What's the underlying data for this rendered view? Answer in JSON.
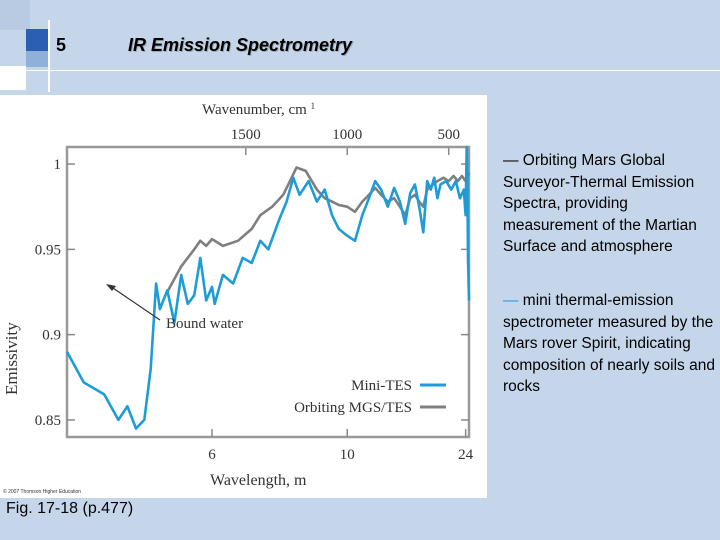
{
  "slide": {
    "number": "5",
    "title": "IR Emission Spectrometry",
    "caption": "Fig. 17-18 (p.477)",
    "copyright": "© 2007 Thomson Higher Education"
  },
  "descriptions": [
    {
      "dash": "—",
      "text": " Orbiting Mars Global Surveyor-Thermal Emission Spectra, providing measurement of the Martian Surface and atmosphere",
      "dash_color": "#000000"
    },
    {
      "dash": "—",
      "text": " mini thermal-emission spectrometer measured by the Mars rover Spirit, indicating composition of nearly soils and rocks",
      "dash_color": "#1e9cd7"
    }
  ],
  "chart_data": {
    "type": "line",
    "xlabel": "Wavelength, m",
    "x2label": "Wavenumber, cm",
    "x2label_sup": "1",
    "ylabel": "Emissivity",
    "xlim": [
      4.2,
      25
    ],
    "ylim": [
      0.84,
      1.01
    ],
    "x_scale": "reciprocal",
    "x_ticks": [
      6,
      10,
      24
    ],
    "x2_ticks": [
      1500,
      1000,
      500
    ],
    "y_ticks": [
      0.85,
      0.9,
      0.95,
      1
    ],
    "y_tick_labels": [
      "0.85",
      "0.9",
      "0.95",
      "1"
    ],
    "grid": false,
    "legend_position": "bottom-right",
    "annotation": {
      "text": "Bound water",
      "x": 5.3,
      "y": 0.927
    },
    "series": [
      {
        "name": "Mini-TES",
        "color": "#1e9cd7",
        "points": [
          [
            4.2,
            0.89
          ],
          [
            4.35,
            0.872
          ],
          [
            4.55,
            0.865
          ],
          [
            4.7,
            0.85
          ],
          [
            4.8,
            0.858
          ],
          [
            4.9,
            0.845
          ],
          [
            5.0,
            0.85
          ],
          [
            5.08,
            0.88
          ],
          [
            5.15,
            0.93
          ],
          [
            5.2,
            0.915
          ],
          [
            5.3,
            0.926
          ],
          [
            5.4,
            0.907
          ],
          [
            5.5,
            0.935
          ],
          [
            5.6,
            0.918
          ],
          [
            5.7,
            0.923
          ],
          [
            5.8,
            0.945
          ],
          [
            5.9,
            0.92
          ],
          [
            6.0,
            0.928
          ],
          [
            6.05,
            0.918
          ],
          [
            6.2,
            0.935
          ],
          [
            6.4,
            0.93
          ],
          [
            6.6,
            0.945
          ],
          [
            6.8,
            0.942
          ],
          [
            7.0,
            0.955
          ],
          [
            7.2,
            0.95
          ],
          [
            7.5,
            0.968
          ],
          [
            7.7,
            0.978
          ],
          [
            7.9,
            0.992
          ],
          [
            8.1,
            0.982
          ],
          [
            8.4,
            0.99
          ],
          [
            8.7,
            0.978
          ],
          [
            9.0,
            0.985
          ],
          [
            9.3,
            0.97
          ],
          [
            9.6,
            0.962
          ],
          [
            10.0,
            0.958
          ],
          [
            10.4,
            0.955
          ],
          [
            10.8,
            0.97
          ],
          [
            11.2,
            0.98
          ],
          [
            11.6,
            0.99
          ],
          [
            12.0,
            0.985
          ],
          [
            12.5,
            0.975
          ],
          [
            13.0,
            0.986
          ],
          [
            13.5,
            0.978
          ],
          [
            14.0,
            0.965
          ],
          [
            14.5,
            0.983
          ],
          [
            15.0,
            0.988
          ],
          [
            15.5,
            0.975
          ],
          [
            16.0,
            0.96
          ],
          [
            16.5,
            0.99
          ],
          [
            17.0,
            0.985
          ],
          [
            17.5,
            0.992
          ],
          [
            18.0,
            0.98
          ],
          [
            18.5,
            0.988
          ],
          [
            19.5,
            0.99
          ],
          [
            20.5,
            0.985
          ],
          [
            21.5,
            0.99
          ],
          [
            22.5,
            0.98
          ],
          [
            23.5,
            0.985
          ],
          [
            24.0,
            0.97
          ],
          [
            24.3,
            1.01
          ],
          [
            24.5,
            0.995
          ],
          [
            24.7,
            0.945
          ],
          [
            25.0,
            0.92
          ]
        ]
      },
      {
        "name": "Orbiting MGS/TES",
        "color": "#7f7f7f",
        "points": [
          [
            5.3,
            0.925
          ],
          [
            5.5,
            0.94
          ],
          [
            5.7,
            0.95
          ],
          [
            5.8,
            0.955
          ],
          [
            5.9,
            0.952
          ],
          [
            6.0,
            0.956
          ],
          [
            6.2,
            0.952
          ],
          [
            6.5,
            0.955
          ],
          [
            6.8,
            0.962
          ],
          [
            7.0,
            0.97
          ],
          [
            7.3,
            0.975
          ],
          [
            7.6,
            0.982
          ],
          [
            7.8,
            0.99
          ],
          [
            8.0,
            0.998
          ],
          [
            8.3,
            0.996
          ],
          [
            8.7,
            0.985
          ],
          [
            9.0,
            0.98
          ],
          [
            9.3,
            0.978
          ],
          [
            9.6,
            0.976
          ],
          [
            10.0,
            0.975
          ],
          [
            10.4,
            0.972
          ],
          [
            10.8,
            0.978
          ],
          [
            11.2,
            0.982
          ],
          [
            11.6,
            0.986
          ],
          [
            12.0,
            0.982
          ],
          [
            12.5,
            0.978
          ],
          [
            13.0,
            0.98
          ],
          [
            13.5,
            0.975
          ],
          [
            14.0,
            0.97
          ],
          [
            14.5,
            0.98
          ],
          [
            15.0,
            0.982
          ],
          [
            15.5,
            0.978
          ],
          [
            16.0,
            0.975
          ],
          [
            16.5,
            0.985
          ],
          [
            17.0,
            0.987
          ],
          [
            18.0,
            0.99
          ],
          [
            19.0,
            0.992
          ],
          [
            20.0,
            0.99
          ],
          [
            21.0,
            0.993
          ],
          [
            22.0,
            0.99
          ],
          [
            23.0,
            0.993
          ],
          [
            24.0,
            0.99
          ],
          [
            25.0,
            0.995
          ]
        ]
      }
    ]
  }
}
